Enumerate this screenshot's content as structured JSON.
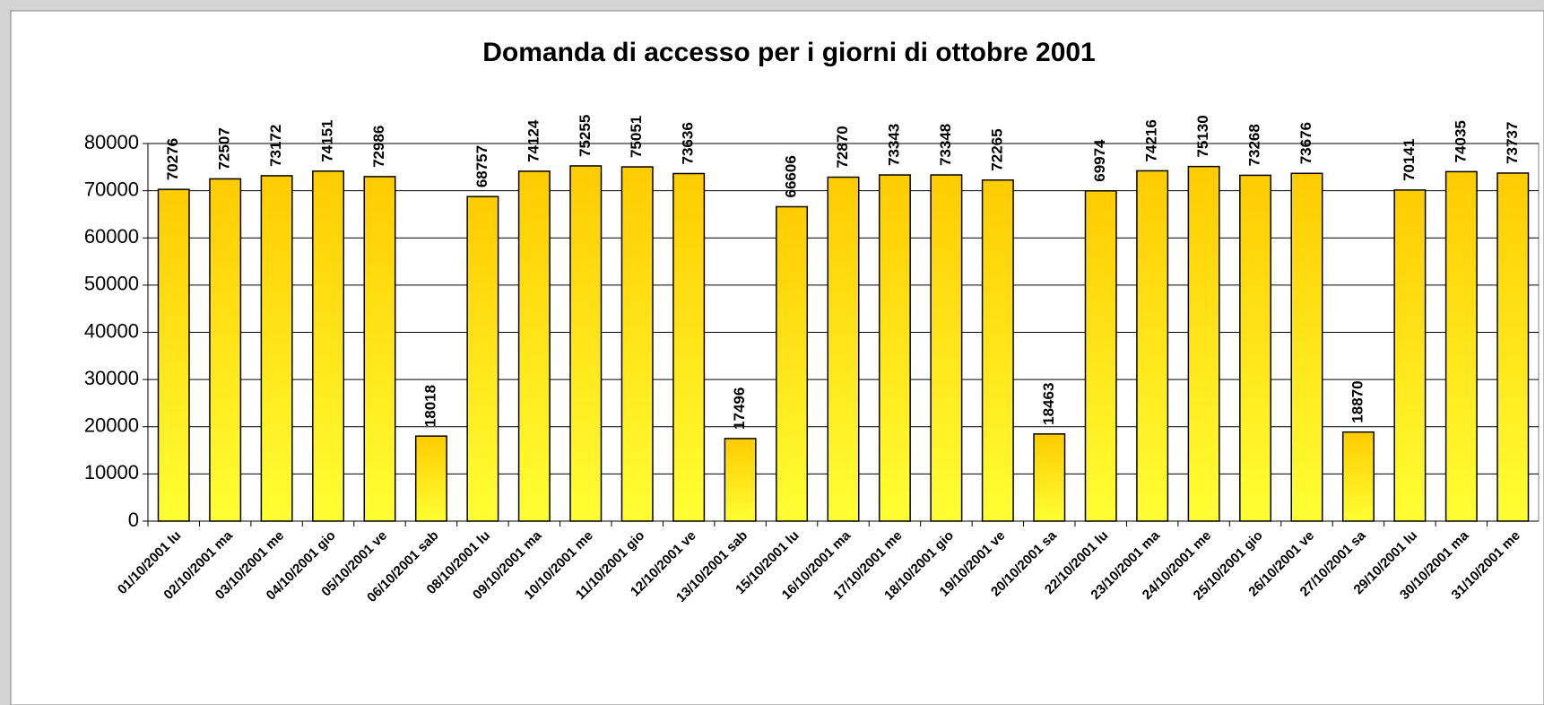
{
  "chart_data": {
    "type": "bar",
    "title": "Domanda di accesso per i giorni di ottobre 2001",
    "categories": [
      "01/10/2001 lu",
      "02/10/2001 ma",
      "03/10/2001 me",
      "04/10/2001 gio",
      "05/10/2001 ve",
      "06/10/2001 sab",
      "08/10/2001 lu",
      "09/10/2001 ma",
      "10/10/2001 me",
      "11/10/2001 gio",
      "12/10/2001 ve",
      "13/10/2001 sab",
      "15/10/2001 lu",
      "16/10/2001 ma",
      "17/10/2001 me",
      "18/10/2001 gio",
      "19/10/2001 ve",
      "20/10/2001 sa",
      "22/10/2001 lu",
      "23/10/2001 ma",
      "24/10/2001 me",
      "25/10/2001 gio",
      "26/10/2001 ve",
      "27/10/2001 sa",
      "29/10/2001 lu",
      "30/10/2001 ma",
      "31/10/2001 me"
    ],
    "values": [
      70276,
      72507,
      73172,
      74151,
      72986,
      18018,
      68757,
      74124,
      75255,
      75051,
      73636,
      17496,
      66606,
      72870,
      73343,
      73348,
      72265,
      18463,
      69974,
      74216,
      75130,
      73268,
      73676,
      18870,
      70141,
      74035,
      73737
    ],
    "color": "#ffcc00",
    "ylim": [
      0,
      80000
    ],
    "yticks": [
      0,
      10000,
      20000,
      30000,
      40000,
      50000,
      60000,
      70000,
      80000
    ],
    "grid": true
  }
}
